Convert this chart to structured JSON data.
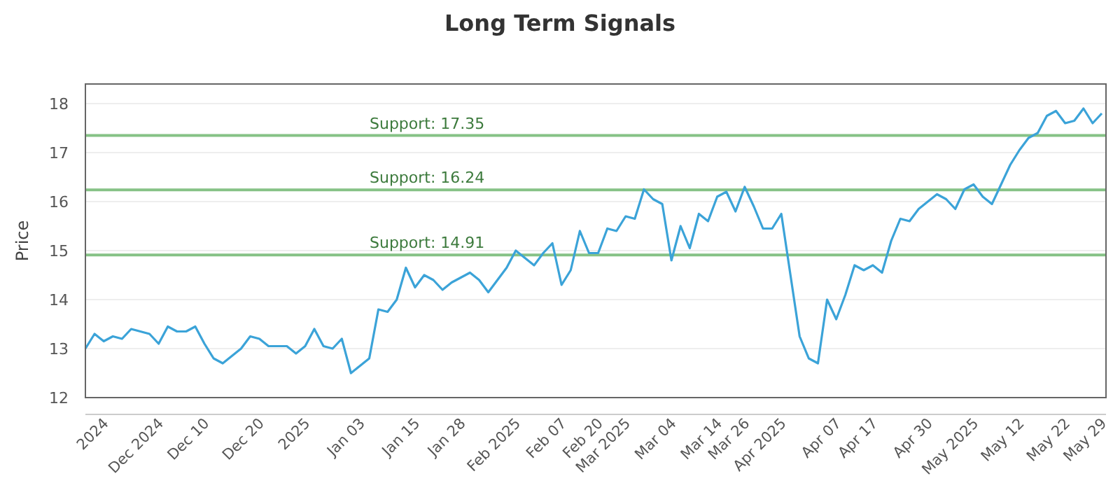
{
  "chart_data": {
    "type": "line",
    "title": "Long Term Signals",
    "ylabel": "Price",
    "series": [
      {
        "color": "#3ba3d8",
        "values": [
          13.0,
          13.3,
          13.15,
          13.25,
          13.2,
          13.4,
          13.35,
          13.3,
          13.1,
          13.45,
          13.35,
          13.35,
          13.45,
          13.1,
          12.8,
          12.7,
          12.85,
          13.0,
          13.25,
          13.2,
          13.05,
          13.05,
          13.05,
          12.9,
          13.05,
          13.4,
          13.05,
          13.0,
          13.2,
          12.5,
          12.65,
          12.8,
          13.8,
          13.75,
          14.0,
          14.65,
          14.25,
          14.5,
          14.4,
          14.2,
          14.35,
          14.45,
          14.55,
          14.4,
          14.15,
          14.4,
          14.65,
          15.0,
          14.85,
          14.7,
          14.95,
          15.15,
          14.3,
          14.6,
          15.4,
          14.95,
          14.95,
          15.45,
          15.4,
          15.7,
          15.65,
          16.25,
          16.05,
          15.95,
          14.8,
          15.5,
          15.05,
          15.75,
          15.6,
          16.1,
          16.2,
          15.8,
          16.3,
          15.9,
          15.45,
          15.45,
          15.75,
          14.5,
          13.25,
          12.8,
          12.7,
          14.0,
          13.6,
          14.1,
          14.7,
          14.6,
          14.7,
          14.55,
          15.2,
          15.65,
          15.6,
          15.85,
          16.0,
          16.15,
          16.05,
          15.85,
          16.25,
          16.35,
          16.1,
          15.95,
          16.35,
          16.75,
          17.05,
          17.3,
          17.4,
          17.75,
          17.85,
          17.6,
          17.65,
          17.9,
          17.6,
          17.8
        ]
      }
    ],
    "categories": [
      null,
      null,
      "2024",
      null,
      null,
      null,
      null,
      null,
      "Dec 2024",
      null,
      null,
      null,
      null,
      "Dec 10",
      null,
      null,
      null,
      null,
      null,
      "Dec 20",
      null,
      null,
      null,
      null,
      "2025",
      null,
      null,
      null,
      null,
      null,
      "Jan 03",
      null,
      null,
      null,
      null,
      null,
      "Jan 15",
      null,
      null,
      null,
      null,
      "Jan 28",
      null,
      null,
      null,
      null,
      null,
      "Feb 2025",
      null,
      null,
      null,
      null,
      "Feb 07",
      null,
      null,
      null,
      "Feb 20",
      null,
      null,
      "Mar 2025",
      null,
      null,
      null,
      null,
      "Mar 04",
      null,
      null,
      null,
      null,
      "Mar 14",
      null,
      null,
      "Mar 26",
      null,
      null,
      null,
      "Apr 2025",
      null,
      null,
      null,
      null,
      null,
      "Apr 07",
      null,
      null,
      null,
      "Apr 17",
      null,
      null,
      null,
      null,
      null,
      "Apr 30",
      null,
      null,
      null,
      null,
      "May 2025",
      null,
      null,
      null,
      null,
      "May 12",
      null,
      null,
      null,
      null,
      "May 22",
      null,
      null,
      null,
      "May 29"
    ],
    "ylim": [
      12,
      18.4
    ],
    "yticks": [
      12,
      13,
      14,
      15,
      16,
      17,
      18
    ],
    "grid": "y",
    "ref_lines": [
      {
        "axis": "y",
        "value": 17.35,
        "label": "Support: 17.35",
        "color": "#86c286"
      },
      {
        "axis": "y",
        "value": 16.24,
        "label": "Support: 16.24",
        "color": "#86c286"
      },
      {
        "axis": "y",
        "value": 14.91,
        "label": "Support: 14.91",
        "color": "#86c286"
      }
    ]
  }
}
